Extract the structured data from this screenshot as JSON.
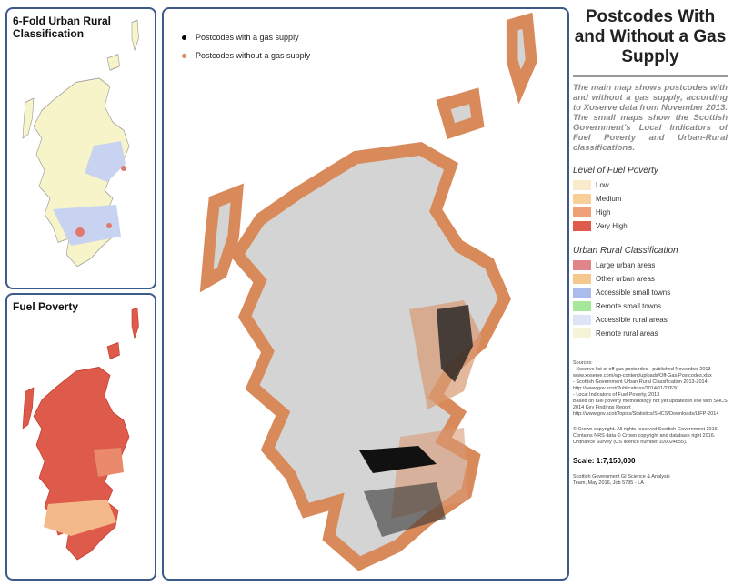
{
  "inset_maps": [
    {
      "title": "6-Fold Urban Rural Classification"
    },
    {
      "title": "Fuel Poverty"
    }
  ],
  "main_map": {
    "legend": [
      "Postcodes with a gas supply",
      "Postcodes without a gas supply"
    ]
  },
  "side_panel": {
    "title": "Postcodes With and Without a Gas Supply",
    "description": "The main map shows postcodes with and without a gas supply, according to Xoserve data from November 2013. The small maps show the Scottish Government's Local Indicators of Fuel Poverty and Urban-Rural classifications.",
    "fuel_poverty_legend": {
      "title": "Level of Fuel Poverty",
      "items": [
        "Low",
        "Medium",
        "High",
        "Very High"
      ]
    },
    "urban_rural_legend": {
      "title": "Urban Rural Classification",
      "items": [
        "Large urban areas",
        "Other urban areas",
        "Accessible small towns",
        "Remote small towns",
        "Accessible rural areas",
        "Remote rural areas"
      ]
    },
    "sources": [
      "Sources:",
      "- Xoserve list of off gas postcodes - published November 2013",
      "www.xoserve.com/wp-content/uploads/Off-Gas-Postcodes.xlsx",
      "- Scottish Government Urban Rural Classification 2013-2014",
      "http://www.gov.scot/Publications/2014/11/2763/",
      "- Local Indicators of Fuel Poverty, 2013",
      "Based on fuel poverty methodology not yet updated in line with SHCS 2014 Key Findings Report",
      "http://www.gov.scot/Topics/Statistics/SHCS/Downloads/LIFP-2014"
    ],
    "copyright": "© Crown copyright. All rights reserved Scottish Government 2016. Contains NRS data © Crown copyright and database right 2016. Ordnance Survey (OS licence number 100024655).",
    "scale": "Scale: 1:7,150,000",
    "credit": "Scottish Government GI Science & Analysis Team, May 2016, Job 5795 - LA"
  }
}
